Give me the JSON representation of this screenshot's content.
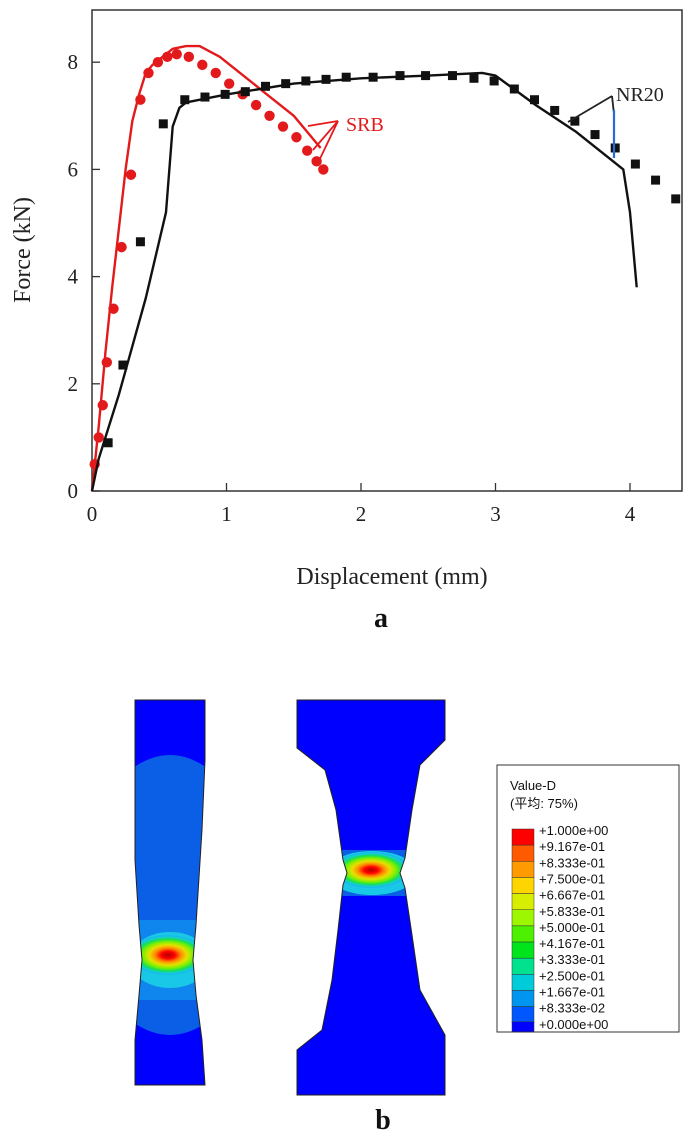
{
  "chart_data": {
    "type": "line",
    "xlabel": "Displacement (mm)",
    "ylabel": "Force (kN)",
    "xlim": [
      0,
      4.5
    ],
    "ylim": [
      0,
      9
    ],
    "xticks": [
      "0",
      "1",
      "2",
      "3",
      "4"
    ],
    "yticks": [
      "0",
      "2",
      "4",
      "6",
      "8"
    ],
    "annotations": [
      {
        "text": "SRB",
        "color": "#e31a1c"
      },
      {
        "text": "NR20",
        "color": "#222222"
      }
    ],
    "series": [
      {
        "style": "line",
        "color": "#e31a1c",
        "x": [
          0,
          0.05,
          0.1,
          0.15,
          0.2,
          0.25,
          0.3,
          0.35,
          0.4,
          0.45,
          0.5,
          0.55,
          0.6,
          0.7,
          0.8,
          0.95,
          1.1,
          1.3,
          1.5,
          1.6,
          1.7
        ],
        "y": [
          0,
          1.2,
          2.6,
          3.8,
          4.9,
          6.0,
          6.9,
          7.4,
          7.8,
          7.95,
          8.05,
          8.15,
          8.25,
          8.3,
          8.3,
          8.1,
          7.8,
          7.4,
          7.0,
          6.7,
          6.4
        ]
      },
      {
        "style": "markers",
        "marker": "circle",
        "color": "#e31a1c",
        "x": [
          0.02,
          0.05,
          0.08,
          0.11,
          0.16,
          0.22,
          0.29,
          0.36,
          0.42,
          0.49,
          0.56,
          0.63,
          0.72,
          0.82,
          0.92,
          1.02,
          1.12,
          1.22,
          1.32,
          1.42,
          1.52,
          1.6,
          1.67,
          1.72
        ],
        "y": [
          0.5,
          1.0,
          1.6,
          2.4,
          3.4,
          4.55,
          5.9,
          7.3,
          7.8,
          8.0,
          8.1,
          8.15,
          8.1,
          7.95,
          7.8,
          7.6,
          7.4,
          7.2,
          7.0,
          6.8,
          6.6,
          6.35,
          6.15,
          6.0
        ]
      },
      {
        "style": "line",
        "color": "#111111",
        "x": [
          0,
          0.05,
          0.2,
          0.4,
          0.55,
          0.6,
          0.65,
          0.7,
          1.0,
          1.5,
          2.0,
          2.5,
          2.9,
          3.0,
          3.3,
          3.6,
          3.85,
          3.95,
          4.0,
          4.05
        ],
        "y": [
          0,
          0.6,
          1.8,
          3.6,
          5.2,
          6.8,
          7.15,
          7.25,
          7.4,
          7.6,
          7.7,
          7.75,
          7.8,
          7.75,
          7.2,
          6.7,
          6.2,
          6.0,
          5.2,
          3.8
        ]
      },
      {
        "style": "markers",
        "marker": "square",
        "color": "#111111",
        "x": [
          0.12,
          0.23,
          0.36,
          0.53,
          0.69,
          0.84,
          0.99,
          1.14,
          1.29,
          1.44,
          1.59,
          1.74,
          1.89,
          2.09,
          2.29,
          2.48,
          2.68,
          2.84,
          2.99,
          3.14,
          3.29,
          3.44,
          3.59,
          3.74,
          3.89,
          4.04,
          4.19,
          4.34
        ],
        "y": [
          0.9,
          2.35,
          4.65,
          6.85,
          7.3,
          7.35,
          7.4,
          7.45,
          7.55,
          7.6,
          7.65,
          7.68,
          7.72,
          7.72,
          7.75,
          7.75,
          7.75,
          7.7,
          7.65,
          7.5,
          7.3,
          7.1,
          6.9,
          6.65,
          6.4,
          6.1,
          5.8,
          5.45
        ]
      }
    ]
  },
  "panel_a_label": "a",
  "panel_b_label": "b",
  "contour_legend": {
    "title": "Value-D",
    "subtitle": "(平均: 75%)",
    "levels": [
      "+1.000e+00",
      "+9.167e-01",
      "+8.333e-01",
      "+7.500e-01",
      "+6.667e-01",
      "+5.833e-01",
      "+5.000e-01",
      "+4.167e-01",
      "+3.333e-01",
      "+2.500e-01",
      "+1.667e-01",
      "+8.333e-02",
      "+0.000e+00"
    ],
    "colors": [
      "#ff0000",
      "#ff5a00",
      "#ff9a00",
      "#ffd500",
      "#d8ee00",
      "#9cf700",
      "#4cf000",
      "#00e41b",
      "#00e28d",
      "#00cbd8",
      "#0096f0",
      "#0056ff",
      "#0000ff"
    ]
  },
  "colors": {
    "background_blue": "#0000ff",
    "mid_blue": "#0a5fe6",
    "light_blue": "#0f85ee",
    "cyan": "#18c8e6",
    "green": "#38d94a",
    "yellow_green": "#c8e60a",
    "orange": "#ff8a00",
    "red": "#ff0000"
  }
}
